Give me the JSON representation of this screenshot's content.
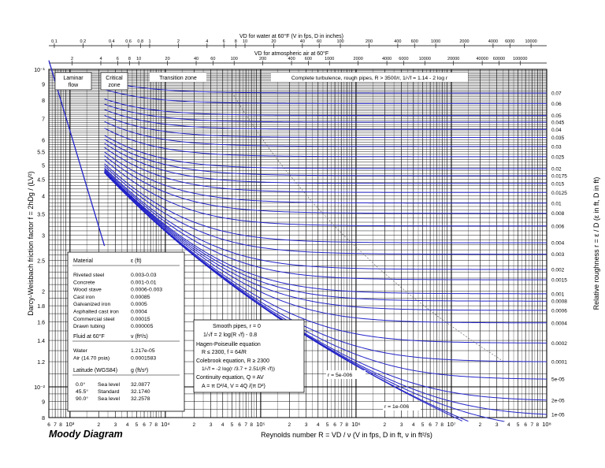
{
  "diagram_title": "Moody Diagram",
  "chart_data": {
    "type": "line",
    "title": "Moody Diagram",
    "xlabel": "Reynolds number  R = VD / ν  (V in fps, D in ft, ν in ft²/s)",
    "ylabel": "Darcy-Weisbach friction factor  f = 2hDg / (LV²)",
    "ylabel_right": "Relative roughness  r = ε / D  (ε in ft, D in ft)",
    "xscale": "log",
    "yscale": "log",
    "xlim": [
      600,
      100000000
    ],
    "ylim": [
      0.008,
      0.1
    ],
    "grid": true,
    "top_axis_water_label": "VD for water at 60°F (V in fps, D in inches)",
    "top_axis_water_ticks": [
      "0.1",
      "0.2",
      "0.4",
      "0.6",
      "0.8",
      "1",
      "2",
      "4",
      "6",
      "8",
      "10",
      "20",
      "40",
      "60",
      "100",
      "200",
      "400",
      "600",
      "1000",
      "2000",
      "4000",
      "6000",
      "10000"
    ],
    "top_axis_air_label": "VD for atmospheric air at 60°F",
    "top_axis_air_ticks": [
      "2",
      "4",
      "6",
      "8",
      "10",
      "20",
      "40",
      "60",
      "100",
      "200",
      "400",
      "600",
      "1000",
      "2000",
      "4000",
      "6000",
      "10000",
      "20000",
      "40000",
      "60000",
      "100000"
    ],
    "x_major_ticks": [
      "10³",
      "10⁴",
      "10⁵",
      "10⁶",
      "10⁷",
      "10⁸"
    ],
    "y_tick_labels": [
      "10⁻¹",
      "9",
      "8",
      "7",
      "6",
      "5.5",
      "5",
      "4.5",
      "4",
      "3.5",
      "3",
      "2.5",
      "2",
      "1.8",
      "1.6",
      "1.4",
      "1.2",
      "10⁻²",
      "9",
      "8"
    ],
    "zones": [
      "Laminar flow",
      "Critical zone",
      "Transition zone",
      "Complete turbulence, rough pipes, R > 3500/r,  1/√f = 1.14 - 2 log r"
    ],
    "roughness_curves": [
      0.07,
      0.06,
      0.05,
      0.045,
      0.04,
      0.035,
      0.03,
      0.025,
      0.02,
      0.0175,
      0.015,
      0.0125,
      0.01,
      0.008,
      0.006,
      0.004,
      0.003,
      0.002,
      0.0015,
      0.001,
      0.0008,
      0.0006,
      0.0004,
      0.0002,
      0.0001,
      5e-05,
      2e-05,
      1e-05
    ],
    "roughness_labels": [
      "0.07",
      "0.06",
      "0.05",
      "0.045",
      "0.04",
      "0.035",
      "0.03",
      "0.025",
      "0.02",
      "0.0175",
      "0.015",
      "0.0125",
      "0.01",
      "0.008",
      "0.006",
      "0.004",
      "0.003",
      "0.002",
      "0.0015",
      "0.001",
      "0.0008",
      "0.0006",
      "0.0004",
      "0.0002",
      "0.0001",
      "5e-05",
      "2e-05",
      "1e-05"
    ],
    "extra_curves": [
      5e-06,
      1e-06
    ],
    "curve_annotations": [
      "r = 5e-006",
      "r = 1e-006"
    ],
    "laminar": {
      "formula": "f = 64/R",
      "x": [
        600,
        2300
      ],
      "y": [
        0.1067,
        0.0278
      ]
    },
    "equations": {
      "smooth_title": "Smooth pipes, r = 0",
      "smooth": "1/√f = 2 log(R √f) - 0.8",
      "hp_title": "Hagen-Poiseuille equation",
      "hp": "R ≤ 2300,  f = 64/R",
      "cb_title": "Colebrook equation,  R ≥ 2300",
      "cb": "1/√f = -2 log(r /3.7 + 2.51/(R √f))",
      "cont_title": "Continuity equation,  Q = AV",
      "cont": "A = π D²/4,  V = 4Q /(π D²)"
    },
    "materials_table": {
      "header": [
        "Material",
        "ε (ft)"
      ],
      "rows": [
        [
          "Riveted steel",
          "0.003-0.03"
        ],
        [
          "Concrete",
          "0.001-0.01"
        ],
        [
          "Wood stave",
          "0.0006-0.003"
        ],
        [
          "Cast iron",
          "0.00085"
        ],
        [
          "Galvanized iron",
          "0.0005"
        ],
        [
          "Asphalted cast iron",
          "0.0004"
        ],
        [
          "Commercial steel",
          "0.00015"
        ],
        [
          "Drawn tubing",
          "0.000005"
        ]
      ],
      "fluid_header": [
        "Fluid at 60°F",
        "ν (ft²/s)"
      ],
      "fluids": [
        [
          "Water",
          "1.217e-05"
        ],
        [
          "Air (14.70 psia)",
          "0.0001583"
        ]
      ],
      "lat_header": [
        "Latitude (WGS84)",
        "g (ft/s²)"
      ],
      "lats": [
        [
          "0.0°",
          "Sea level",
          "32.0877"
        ],
        [
          "45.5°",
          "Standard",
          "32.1740"
        ],
        [
          "90.0°",
          "Sea level",
          "32.2578"
        ]
      ]
    },
    "colors": {
      "curves": "#2424c8",
      "grid": "#000000"
    }
  }
}
